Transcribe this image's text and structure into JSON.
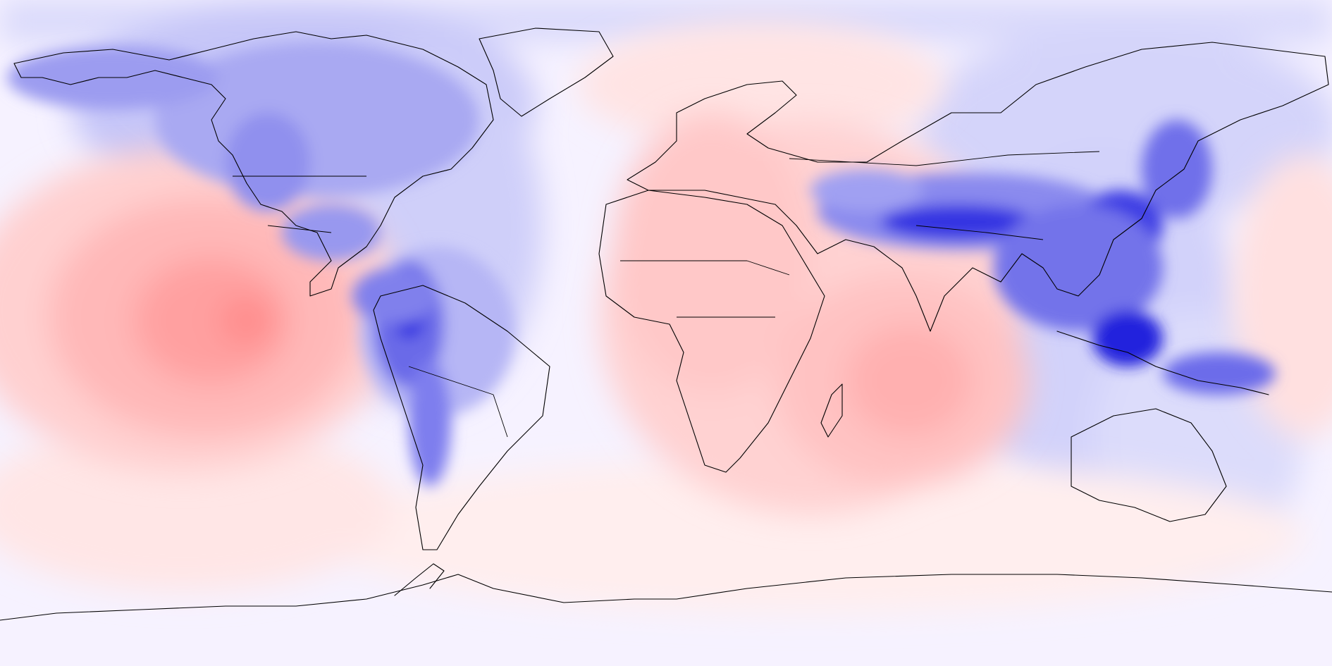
{
  "map": {
    "projection": "equirectangular",
    "longitude_range": [
      -180,
      180
    ],
    "latitude_range": [
      -90,
      90
    ],
    "central_longitude": -60,
    "colormap": {
      "strong_negative": "#1a1aff",
      "negative": "#8c8cf5",
      "weak_negative": "#c8c8fa",
      "neutral": "#f7f0ff",
      "weak_positive": "#ffe8e8",
      "positive": "#ffc4c4",
      "strong_positive": "#ff8a8a"
    },
    "legend": "",
    "title": ""
  }
}
